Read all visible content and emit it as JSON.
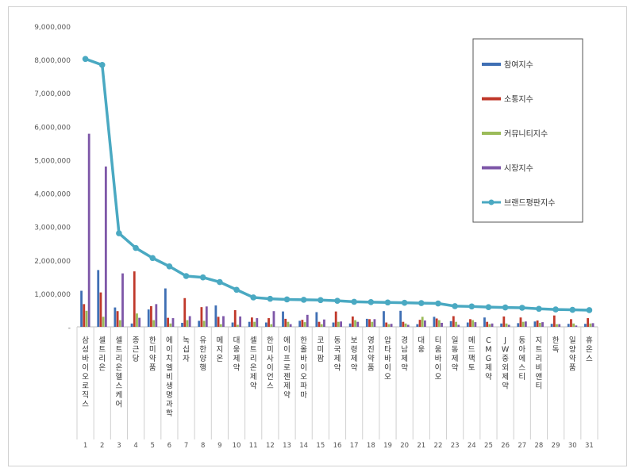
{
  "chart_data": {
    "type": "bar",
    "title": "",
    "xlabel": "",
    "ylabel": "",
    "ylim": [
      0,
      9000000
    ],
    "yticks": [
      0,
      1000000,
      2000000,
      3000000,
      4000000,
      5000000,
      6000000,
      7000000,
      8000000,
      9000000
    ],
    "ytick_labels": [
      "-",
      "1,000,000",
      "2,000,000",
      "3,000,000",
      "4,000,000",
      "5,000,000",
      "6,000,000",
      "7,000,000",
      "8,000,000",
      "9,000,000"
    ],
    "grid": false,
    "legend_position": "top-right",
    "categories": [
      "삼성바이오로직스",
      "셀트리온",
      "셀트리온헬스케어",
      "종근당",
      "한미약품",
      "에이치엘비생명과학",
      "녹십자",
      "유한양행",
      "메지온",
      "대웅제약",
      "셀트리온제약",
      "한미사이언스",
      "에이프로젠제약",
      "한올바이오파마",
      "코미팜",
      "동국제약",
      "보령제약",
      "영진약품",
      "압타바이오",
      "경남제약",
      "대웅",
      "티움바이오",
      "일동제약",
      "메드팩토",
      "CMG제약",
      "JW중외제약",
      "동아에스티",
      "지트리비앤티",
      "한독",
      "일양약품",
      "휴온스"
    ],
    "ranks": [
      "1",
      "2",
      "3",
      "4",
      "5",
      "6",
      "7",
      "8",
      "9",
      "10",
      "11",
      "12",
      "13",
      "14",
      "15",
      "16",
      "17",
      "18",
      "19",
      "20",
      "21",
      "22",
      "23",
      "24",
      "25",
      "26",
      "27",
      "28",
      "29",
      "30",
      "31"
    ],
    "series": [
      {
        "name": "참여지수",
        "kind": "bar",
        "color": "#3f6fb4",
        "values": [
          1080000,
          1700000,
          580000,
          100000,
          520000,
          1150000,
          120000,
          180000,
          640000,
          130000,
          150000,
          130000,
          460000,
          180000,
          440000,
          130000,
          100000,
          240000,
          470000,
          480000,
          80000,
          300000,
          170000,
          130000,
          280000,
          100000,
          110000,
          160000,
          90000,
          90000,
          90000
        ]
      },
      {
        "name": "소통지수",
        "kind": "bar",
        "color": "#c0392b",
        "values": [
          680000,
          1030000,
          470000,
          1660000,
          620000,
          270000,
          860000,
          590000,
          300000,
          500000,
          280000,
          260000,
          240000,
          210000,
          150000,
          460000,
          310000,
          230000,
          130000,
          150000,
          210000,
          250000,
          320000,
          230000,
          150000,
          310000,
          280000,
          190000,
          340000,
          230000,
          260000
        ]
      },
      {
        "name": "커뮤니티지수",
        "kind": "bar",
        "color": "#9bbb59",
        "values": [
          480000,
          300000,
          200000,
          400000,
          200000,
          100000,
          200000,
          180000,
          80000,
          60000,
          150000,
          80000,
          150000,
          140000,
          80000,
          150000,
          200000,
          150000,
          80000,
          100000,
          300000,
          200000,
          150000,
          200000,
          80000,
          100000,
          150000,
          120000,
          80000,
          100000,
          100000
        ]
      },
      {
        "name": "시장지수",
        "kind": "bar",
        "color": "#7e57a8",
        "values": [
          5780000,
          4800000,
          1600000,
          270000,
          680000,
          260000,
          320000,
          610000,
          320000,
          310000,
          260000,
          470000,
          80000,
          360000,
          220000,
          160000,
          150000,
          230000,
          90000,
          60000,
          190000,
          120000,
          60000,
          140000,
          100000,
          60000,
          160000,
          140000,
          80000,
          40000,
          110000
        ]
      },
      {
        "name": "브랜드평판지수",
        "kind": "line",
        "color": "#4aa9c2",
        "values": [
          8020000,
          7840000,
          2800000,
          2360000,
          2060000,
          1810000,
          1520000,
          1480000,
          1340000,
          1110000,
          880000,
          840000,
          820000,
          810000,
          800000,
          780000,
          750000,
          740000,
          730000,
          720000,
          710000,
          700000,
          620000,
          610000,
          590000,
          580000,
          570000,
          540000,
          520000,
          510000,
          500000
        ]
      }
    ]
  }
}
